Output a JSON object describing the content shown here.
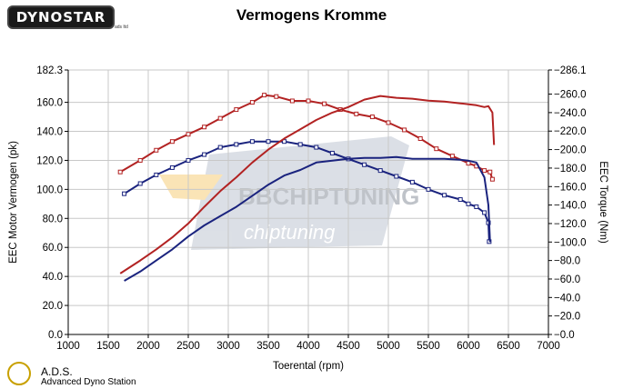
{
  "header": {
    "logo_text": "DYNOSTAR",
    "logo_small": "ads ltd"
  },
  "footer": {
    "ads_title": "A.D.S.",
    "ads_subtitle": "Advanced Dyno Station"
  },
  "watermark": {
    "brand": "BBCHIPTUNING",
    "sub": "chiptuning"
  },
  "colors": {
    "red": "#b22222",
    "blue": "#1a237e"
  },
  "chart_data": {
    "type": "line",
    "title": "Vermogens Kromme",
    "xlabel": "Toerental (rpm)",
    "ylabel": "EEC Motor Vermogen (pk)",
    "y2label": "EEC Torque (Nm)",
    "xlim": [
      1000,
      7000
    ],
    "ylim": [
      0,
      182.3
    ],
    "y2lim": [
      0,
      286.1
    ],
    "x_ticks": [
      "1000",
      "1500",
      "2000",
      "2500",
      "3000",
      "3500",
      "4000",
      "4500",
      "5000",
      "5500",
      "6000",
      "6500",
      "7000"
    ],
    "y_ticks": [
      "0.0",
      "20.0",
      "40.0",
      "60.0",
      "80.0",
      "100.0",
      "120.0",
      "140.0",
      "160.0",
      "182.3"
    ],
    "y2_ticks": [
      "0.0",
      "20.0",
      "40.0",
      "60.0",
      "80.0",
      "100.0",
      "120.0",
      "140.0",
      "160.0",
      "180.0",
      "200.0",
      "220.0",
      "240.0",
      "260.0",
      "286.1"
    ],
    "grid": true,
    "series": [
      {
        "axis": "left",
        "color": "#b22222",
        "markers": true,
        "x": [
          1650,
          1900,
          2100,
          2300,
          2500,
          2700,
          2900,
          3100,
          3300,
          3450,
          3600,
          3800,
          4000,
          4200,
          4400,
          4600,
          4800,
          5000,
          5200,
          5400,
          5600,
          5800,
          6000,
          6100,
          6200,
          6270,
          6300
        ],
        "y": [
          112,
          120,
          127,
          133,
          138,
          143,
          149,
          155,
          160,
          165,
          164,
          161,
          161,
          159,
          155,
          152,
          150,
          146,
          141,
          135,
          128,
          123,
          118,
          116,
          113,
          112,
          107
        ]
      },
      {
        "axis": "left",
        "color": "#1a237e",
        "markers": true,
        "x": [
          1700,
          1900,
          2100,
          2300,
          2500,
          2700,
          2900,
          3100,
          3300,
          3500,
          3700,
          3900,
          4100,
          4300,
          4500,
          4700,
          4900,
          5100,
          5300,
          5500,
          5700,
          5900,
          6000,
          6100,
          6200,
          6250,
          6260
        ],
        "y": [
          97,
          104,
          110,
          115,
          120,
          124,
          129,
          131,
          133,
          133,
          133,
          131,
          129,
          125,
          121,
          117,
          113,
          109,
          105,
          100,
          96,
          93,
          90,
          88,
          84,
          77,
          64
        ]
      },
      {
        "axis": "right",
        "color": "#b22222",
        "markers": false,
        "x": [
          1650,
          1900,
          2100,
          2300,
          2500,
          2700,
          2900,
          3100,
          3300,
          3500,
          3700,
          3900,
          4100,
          4300,
          4500,
          4700,
          4900,
          5100,
          5300,
          5500,
          5700,
          5900,
          6100,
          6200,
          6250,
          6300,
          6320
        ],
        "y": [
          66,
          80,
          92,
          105,
          120,
          138,
          155,
          170,
          186,
          200,
          212,
          222,
          232,
          240,
          246,
          254,
          258,
          256,
          255,
          253,
          252,
          250,
          248,
          246,
          247,
          240,
          205
        ]
      },
      {
        "axis": "right",
        "color": "#1a237e",
        "markers": false,
        "x": [
          1700,
          1900,
          2100,
          2300,
          2500,
          2700,
          2900,
          3100,
          3300,
          3500,
          3700,
          3900,
          4100,
          4300,
          4500,
          4700,
          4900,
          5100,
          5300,
          5500,
          5700,
          5900,
          6000,
          6100,
          6200,
          6250,
          6270
        ],
        "y": [
          58,
          68,
          80,
          92,
          106,
          118,
          128,
          138,
          150,
          162,
          172,
          178,
          186,
          188,
          190,
          191,
          191,
          192,
          190,
          190,
          190,
          189,
          188,
          186,
          170,
          140,
          100
        ]
      }
    ]
  }
}
